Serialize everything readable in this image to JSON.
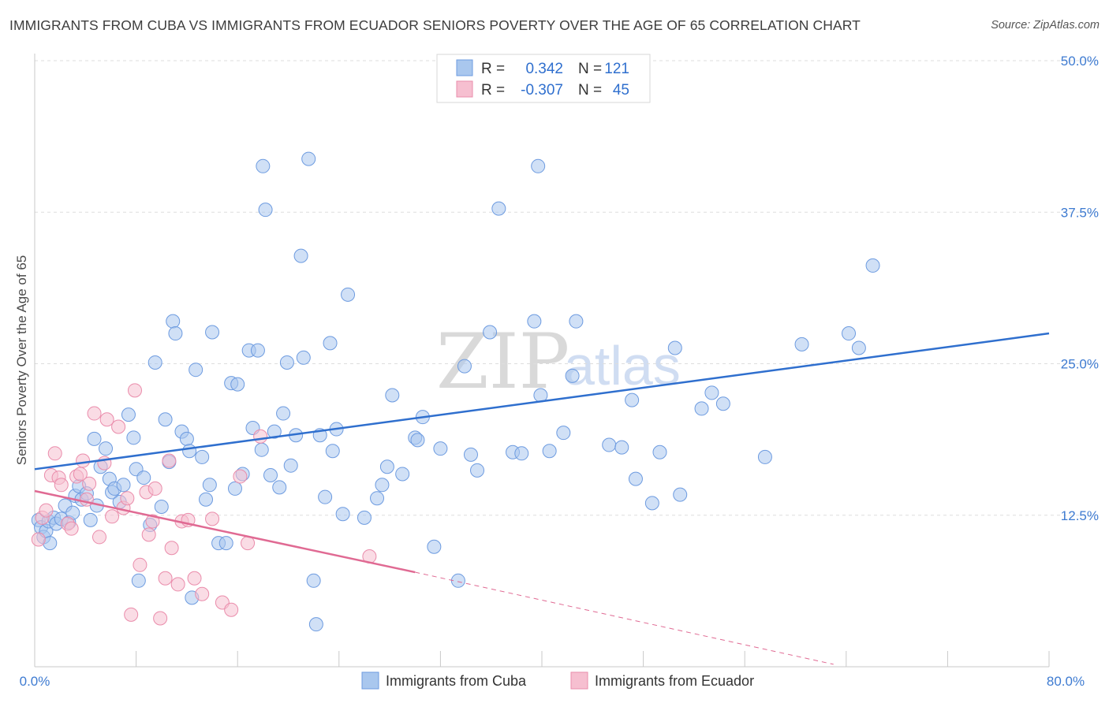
{
  "title": "IMMIGRANTS FROM CUBA VS IMMIGRANTS FROM ECUADOR SENIORS POVERTY OVER THE AGE OF 65 CORRELATION CHART",
  "source": "Source: ZipAtlas.com",
  "watermark": {
    "zip": "ZIP",
    "atlas": "atlas"
  },
  "colors": {
    "cuba_fill": "#a9c7ee",
    "cuba_stroke": "#6d9be0",
    "cuba_line": "#2f6fce",
    "ecuador_fill": "#f6bfd0",
    "ecuador_stroke": "#ea8cab",
    "ecuador_line": "#e06a93",
    "axis_label": "#3e7bd1",
    "grid": "#dddddd"
  },
  "legend": {
    "rows": [
      {
        "r_label": "R =",
        "r_value": "0.342",
        "n_label": "N =",
        "n_value": "121"
      },
      {
        "r_label": "R =",
        "r_value": "-0.307",
        "n_label": "N =",
        "n_value": "45"
      }
    ]
  },
  "chart_data": {
    "type": "scatter",
    "title": "IMMIGRANTS FROM CUBA VS IMMIGRANTS FROM ECUADOR SENIORS POVERTY OVER THE AGE OF 65 CORRELATION CHART",
    "xlabel": "",
    "ylabel": "Seniors Poverty Over the Age of 65",
    "xlim": [
      0,
      80
    ],
    "ylim": [
      0,
      50
    ],
    "x_tick_labels": [
      "0.0%",
      "80.0%"
    ],
    "y_ticks": [
      12.5,
      25.0,
      37.5,
      50.0
    ],
    "y_tick_labels": [
      "12.5%",
      "25.0%",
      "37.5%",
      "50.0%"
    ],
    "grid": true,
    "series": [
      {
        "name": "Immigrants from Cuba",
        "trend": {
          "x": [
            0,
            80
          ],
          "y": [
            16.3,
            27.5
          ]
        },
        "points": [
          [
            0.3,
            12.1
          ],
          [
            0.5,
            11.5
          ],
          [
            0.7,
            10.7
          ],
          [
            0.9,
            11.2
          ],
          [
            1.1,
            12.0
          ],
          [
            1.2,
            10.2
          ],
          [
            1.5,
            12.3
          ],
          [
            1.7,
            11.8
          ],
          [
            2.1,
            12.2
          ],
          [
            2.4,
            13.3
          ],
          [
            2.7,
            11.9
          ],
          [
            3.0,
            12.7
          ],
          [
            3.2,
            14.1
          ],
          [
            3.5,
            14.9
          ],
          [
            3.7,
            13.8
          ],
          [
            4.1,
            14.3
          ],
          [
            4.4,
            12.1
          ],
          [
            4.7,
            18.8
          ],
          [
            4.9,
            13.3
          ],
          [
            5.2,
            16.5
          ],
          [
            5.6,
            18.0
          ],
          [
            5.9,
            15.5
          ],
          [
            6.1,
            14.4
          ],
          [
            6.3,
            14.7
          ],
          [
            6.7,
            13.6
          ],
          [
            7.0,
            15.0
          ],
          [
            7.4,
            20.8
          ],
          [
            7.8,
            18.9
          ],
          [
            8.0,
            16.3
          ],
          [
            8.2,
            7.1
          ],
          [
            8.6,
            15.6
          ],
          [
            9.1,
            11.7
          ],
          [
            9.5,
            25.1
          ],
          [
            10.0,
            13.2
          ],
          [
            10.3,
            20.4
          ],
          [
            10.6,
            16.9
          ],
          [
            10.9,
            28.5
          ],
          [
            11.1,
            27.5
          ],
          [
            11.6,
            19.4
          ],
          [
            12.0,
            18.8
          ],
          [
            12.2,
            17.8
          ],
          [
            12.4,
            5.7
          ],
          [
            12.7,
            24.5
          ],
          [
            13.2,
            17.3
          ],
          [
            13.5,
            13.8
          ],
          [
            13.8,
            15.0
          ],
          [
            14.0,
            27.6
          ],
          [
            14.5,
            10.2
          ],
          [
            15.1,
            10.2
          ],
          [
            15.5,
            23.4
          ],
          [
            15.8,
            14.7
          ],
          [
            16.0,
            23.3
          ],
          [
            16.4,
            15.9
          ],
          [
            16.9,
            26.1
          ],
          [
            17.2,
            19.7
          ],
          [
            17.6,
            26.1
          ],
          [
            17.9,
            17.9
          ],
          [
            18.0,
            41.3
          ],
          [
            18.2,
            37.7
          ],
          [
            18.6,
            15.8
          ],
          [
            18.9,
            19.4
          ],
          [
            19.3,
            14.8
          ],
          [
            19.6,
            20.9
          ],
          [
            19.9,
            25.1
          ],
          [
            20.2,
            16.6
          ],
          [
            20.6,
            19.1
          ],
          [
            21.0,
            33.9
          ],
          [
            21.2,
            25.5
          ],
          [
            21.6,
            41.9
          ],
          [
            22.0,
            7.1
          ],
          [
            22.2,
            3.5
          ],
          [
            22.5,
            19.1
          ],
          [
            22.9,
            14.0
          ],
          [
            23.3,
            26.7
          ],
          [
            23.5,
            17.8
          ],
          [
            23.8,
            19.6
          ],
          [
            24.3,
            12.6
          ],
          [
            24.7,
            30.7
          ],
          [
            26.0,
            12.3
          ],
          [
            27.0,
            13.9
          ],
          [
            27.4,
            15.0
          ],
          [
            27.8,
            16.5
          ],
          [
            28.2,
            22.4
          ],
          [
            29.0,
            15.9
          ],
          [
            30.0,
            18.9
          ],
          [
            30.2,
            18.7
          ],
          [
            30.6,
            20.6
          ],
          [
            31.5,
            9.9
          ],
          [
            32.0,
            18.0
          ],
          [
            33.4,
            7.1
          ],
          [
            33.9,
            24.8
          ],
          [
            34.4,
            17.5
          ],
          [
            34.9,
            16.2
          ],
          [
            35.9,
            27.6
          ],
          [
            36.6,
            37.8
          ],
          [
            37.7,
            17.7
          ],
          [
            38.4,
            17.6
          ],
          [
            39.4,
            28.5
          ],
          [
            39.7,
            41.3
          ],
          [
            39.9,
            22.4
          ],
          [
            40.6,
            17.8
          ],
          [
            41.7,
            19.3
          ],
          [
            42.4,
            24.0
          ],
          [
            42.7,
            28.5
          ],
          [
            45.3,
            18.3
          ],
          [
            46.3,
            18.1
          ],
          [
            47.1,
            22.0
          ],
          [
            47.4,
            15.5
          ],
          [
            48.7,
            13.5
          ],
          [
            49.3,
            17.7
          ],
          [
            50.5,
            26.3
          ],
          [
            50.9,
            14.2
          ],
          [
            52.6,
            21.3
          ],
          [
            53.4,
            22.6
          ],
          [
            54.3,
            21.7
          ],
          [
            57.6,
            17.3
          ],
          [
            60.5,
            26.6
          ],
          [
            64.2,
            27.5
          ],
          [
            65.0,
            26.3
          ],
          [
            66.1,
            33.1
          ]
        ]
      },
      {
        "name": "Immigrants from Ecuador",
        "trend": {
          "x": [
            0,
            30
          ],
          "y": [
            14.5,
            7.8
          ]
        },
        "trend_extended": {
          "x": [
            30,
            63
          ],
          "y": [
            7.8,
            0.2
          ]
        },
        "points": [
          [
            0.3,
            10.5
          ],
          [
            0.6,
            12.3
          ],
          [
            0.9,
            12.9
          ],
          [
            1.3,
            15.8
          ],
          [
            1.6,
            17.6
          ],
          [
            1.9,
            15.6
          ],
          [
            2.1,
            15.0
          ],
          [
            2.6,
            11.8
          ],
          [
            2.9,
            11.4
          ],
          [
            3.3,
            15.7
          ],
          [
            3.6,
            15.9
          ],
          [
            3.8,
            17.0
          ],
          [
            4.1,
            13.8
          ],
          [
            4.3,
            15.1
          ],
          [
            4.7,
            20.9
          ],
          [
            5.1,
            10.7
          ],
          [
            5.5,
            16.8
          ],
          [
            5.7,
            20.4
          ],
          [
            6.1,
            12.4
          ],
          [
            6.6,
            19.8
          ],
          [
            7.0,
            13.1
          ],
          [
            7.3,
            13.9
          ],
          [
            7.6,
            4.3
          ],
          [
            7.9,
            22.8
          ],
          [
            8.3,
            8.4
          ],
          [
            8.8,
            14.4
          ],
          [
            9.0,
            10.9
          ],
          [
            9.3,
            12.0
          ],
          [
            9.5,
            14.7
          ],
          [
            9.9,
            4.0
          ],
          [
            10.3,
            7.3
          ],
          [
            10.6,
            17.0
          ],
          [
            10.8,
            9.8
          ],
          [
            11.3,
            6.8
          ],
          [
            11.6,
            12.0
          ],
          [
            12.1,
            12.1
          ],
          [
            12.6,
            7.3
          ],
          [
            13.2,
            6.0
          ],
          [
            14.0,
            12.2
          ],
          [
            14.8,
            5.3
          ],
          [
            15.5,
            4.7
          ],
          [
            16.2,
            15.7
          ],
          [
            16.8,
            10.2
          ],
          [
            17.8,
            19.0
          ],
          [
            26.4,
            9.1
          ]
        ]
      }
    ]
  },
  "bottom_legend": [
    {
      "label": "Immigrants from Cuba"
    },
    {
      "label": "Immigrants from Ecuador"
    }
  ]
}
